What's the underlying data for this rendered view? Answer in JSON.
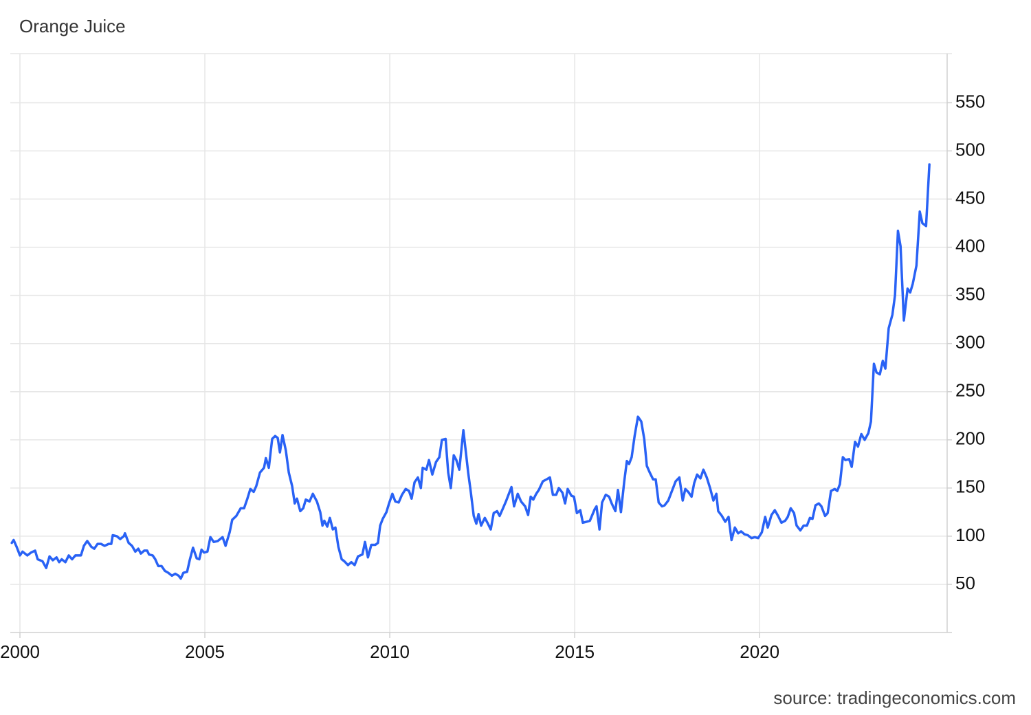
{
  "chart_data": {
    "type": "line",
    "title": "Orange Juice",
    "source": "source: tradingeconomics.com",
    "color": "#2962f5",
    "xlim": [
      1999.74,
      2025.07
    ],
    "ylim": [
      0,
      601
    ],
    "xticks": [
      2000,
      2005,
      2010,
      2015,
      2020
    ],
    "yticks": [
      50,
      100,
      150,
      200,
      250,
      300,
      350,
      400,
      450,
      500,
      550
    ],
    "grid": true,
    "x": [
      1999.78,
      1999.83,
      1999.91,
      2000.0,
      2000.07,
      2000.2,
      2000.3,
      2000.41,
      2000.48,
      2000.61,
      2000.71,
      2000.8,
      2000.89,
      2000.99,
      2001.06,
      2001.13,
      2001.23,
      2001.32,
      2001.41,
      2001.5,
      2001.65,
      2001.73,
      2001.82,
      2001.93,
      2002.01,
      2002.1,
      2002.19,
      2002.29,
      2002.4,
      2002.47,
      2002.51,
      2002.62,
      2002.71,
      2002.81,
      2002.84,
      2002.94,
      2003.03,
      2003.12,
      2003.2,
      2003.27,
      2003.36,
      2003.44,
      2003.49,
      2003.59,
      2003.66,
      2003.74,
      2003.83,
      2003.92,
      2004.01,
      2004.11,
      2004.2,
      2004.29,
      2004.35,
      2004.42,
      2004.52,
      2004.59,
      2004.68,
      2004.78,
      2004.85,
      2004.91,
      2004.98,
      2005.07,
      2005.15,
      2005.24,
      2005.35,
      2005.48,
      2005.56,
      2005.67,
      2005.74,
      2005.85,
      2005.97,
      2006.06,
      2006.15,
      2006.23,
      2006.32,
      2006.39,
      2006.49,
      2006.6,
      2006.65,
      2006.73,
      2006.82,
      2006.9,
      2006.97,
      2007.03,
      2007.1,
      2007.19,
      2007.27,
      2007.36,
      2007.43,
      2007.49,
      2007.58,
      2007.66,
      2007.73,
      2007.83,
      2007.92,
      2008.03,
      2008.12,
      2008.18,
      2008.23,
      2008.31,
      2008.38,
      2008.46,
      2008.53,
      2008.61,
      2008.7,
      2008.77,
      2008.87,
      2008.96,
      2009.05,
      2009.14,
      2009.26,
      2009.33,
      2009.41,
      2009.5,
      2009.61,
      2009.68,
      2009.74,
      2009.81,
      2009.91,
      2009.98,
      2010.07,
      2010.15,
      2010.24,
      2010.33,
      2010.43,
      2010.52,
      2010.59,
      2010.67,
      2010.76,
      2010.84,
      2010.89,
      2010.99,
      2011.06,
      2011.15,
      2011.25,
      2011.34,
      2011.41,
      2011.51,
      2011.58,
      2011.65,
      2011.73,
      2011.8,
      2011.88,
      2011.99,
      2012.04,
      2012.12,
      2012.19,
      2012.27,
      2012.34,
      2012.4,
      2012.47,
      2012.57,
      2012.64,
      2012.73,
      2012.81,
      2012.9,
      2012.97,
      2013.05,
      2013.14,
      2013.22,
      2013.29,
      2013.36,
      2013.46,
      2013.55,
      2013.66,
      2013.74,
      2013.81,
      2013.88,
      2013.96,
      2014.03,
      2014.14,
      2014.24,
      2014.33,
      2014.41,
      2014.5,
      2014.57,
      2014.67,
      2014.74,
      2014.81,
      2014.91,
      2014.98,
      2015.06,
      2015.15,
      2015.22,
      2015.32,
      2015.41,
      2015.54,
      2015.59,
      2015.67,
      2015.74,
      2015.84,
      2015.93,
      2016.0,
      2016.1,
      2016.17,
      2016.25,
      2016.34,
      2016.41,
      2016.47,
      2016.54,
      2016.62,
      2016.71,
      2016.8,
      2016.88,
      2016.95,
      2017.03,
      2017.12,
      2017.19,
      2017.27,
      2017.36,
      2017.43,
      2017.53,
      2017.64,
      2017.73,
      2017.83,
      2017.92,
      2017.99,
      2018.07,
      2018.16,
      2018.23,
      2018.31,
      2018.4,
      2018.48,
      2018.57,
      2018.66,
      2018.75,
      2018.83,
      2018.88,
      2018.98,
      2019.07,
      2019.16,
      2019.24,
      2019.33,
      2019.42,
      2019.5,
      2019.59,
      2019.68,
      2019.78,
      2019.87,
      2019.96,
      2020.06,
      2020.15,
      2020.22,
      2020.32,
      2020.41,
      2020.5,
      2020.59,
      2020.69,
      2020.76,
      2020.84,
      2020.93,
      2021.0,
      2021.1,
      2021.19,
      2021.28,
      2021.36,
      2021.43,
      2021.51,
      2021.6,
      2021.67,
      2021.77,
      2021.84,
      2021.93,
      2022.03,
      2022.1,
      2022.17,
      2022.25,
      2022.32,
      2022.42,
      2022.49,
      2022.58,
      2022.66,
      2022.75,
      2022.84,
      2022.94,
      2023.01,
      2023.09,
      2023.16,
      2023.25,
      2023.33,
      2023.4,
      2023.49,
      2023.59,
      2023.66,
      2023.74,
      2023.81,
      2023.9,
      2024.0,
      2024.07,
      2024.14,
      2024.24,
      2024.33,
      2024.4,
      2024.5,
      2024.59
    ],
    "values": [
      93,
      96,
      89,
      80,
      84,
      80,
      83,
      85,
      76,
      74,
      67,
      79,
      75,
      78,
      73,
      76,
      73,
      80,
      76,
      80,
      80,
      90,
      95,
      89,
      87,
      92,
      92,
      90,
      92,
      92,
      101,
      100,
      97,
      100,
      103,
      93,
      90,
      84,
      87,
      82,
      85,
      85,
      81,
      80,
      76,
      69,
      69,
      64,
      62,
      59,
      61,
      59,
      56,
      62,
      63,
      75,
      88,
      77,
      76,
      86,
      83,
      84,
      99,
      94,
      95,
      99,
      90,
      104,
      117,
      121,
      129,
      129,
      139,
      149,
      146,
      152,
      166,
      171,
      181,
      171,
      201,
      204,
      202,
      187,
      205,
      189,
      166,
      152,
      134,
      139,
      126,
      129,
      138,
      136,
      144,
      136,
      125,
      111,
      116,
      110,
      119,
      107,
      109,
      89,
      76,
      74,
      70,
      73,
      70,
      79,
      81,
      94,
      78,
      91,
      91,
      93,
      111,
      118,
      125,
      134,
      144,
      136,
      135,
      143,
      149,
      147,
      139,
      156,
      161,
      150,
      171,
      169,
      179,
      164,
      177,
      182,
      200,
      201,
      166,
      150,
      184,
      179,
      169,
      210,
      193,
      166,
      146,
      121,
      113,
      123,
      111,
      119,
      114,
      107,
      124,
      126,
      121,
      128,
      136,
      144,
      151,
      131,
      144,
      136,
      131,
      122,
      141,
      138,
      144,
      148,
      157,
      159,
      161,
      143,
      143,
      150,
      145,
      134,
      149,
      142,
      141,
      124,
      127,
      114,
      115,
      116,
      128,
      131,
      107,
      135,
      143,
      141,
      134,
      126,
      148,
      125,
      157,
      178,
      175,
      182,
      204,
      224,
      219,
      201,
      173,
      166,
      159,
      159,
      135,
      131,
      132,
      137,
      148,
      157,
      161,
      137,
      149,
      146,
      141,
      155,
      164,
      160,
      169,
      161,
      150,
      137,
      144,
      126,
      121,
      115,
      120,
      96,
      109,
      103,
      105,
      102,
      101,
      98,
      99,
      98,
      104,
      120,
      109,
      122,
      127,
      121,
      114,
      116,
      120,
      129,
      124,
      111,
      106,
      111,
      111,
      119,
      118,
      132,
      134,
      131,
      121,
      124,
      147,
      149,
      147,
      154,
      182,
      179,
      180,
      172,
      198,
      193,
      206,
      200,
      207,
      219,
      279,
      270,
      268,
      282,
      274,
      316,
      330,
      350,
      417,
      401,
      324,
      357,
      353,
      362,
      381,
      437,
      425,
      422,
      486
    ]
  }
}
